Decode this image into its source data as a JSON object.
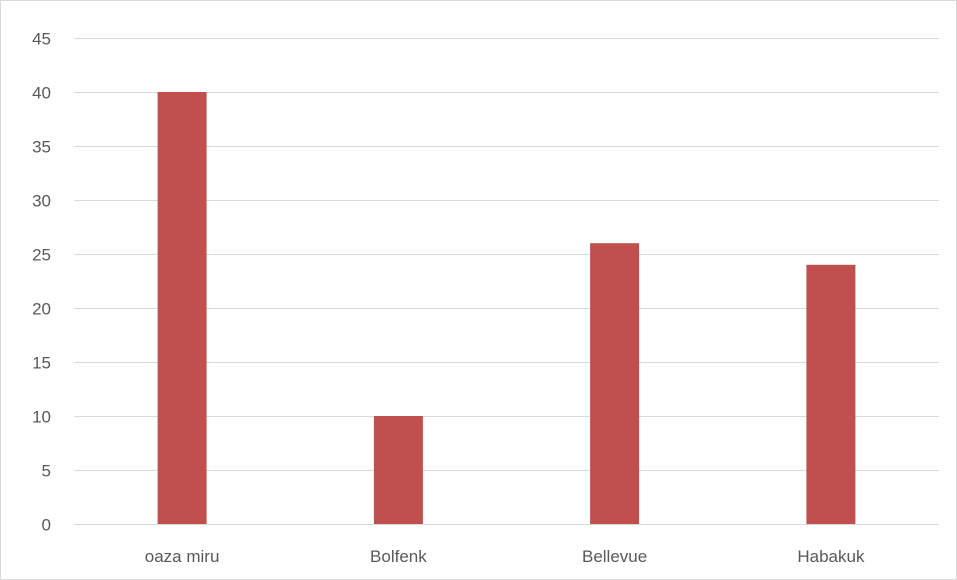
{
  "chart_data": {
    "type": "bar",
    "categories": [
      "oaza miru",
      "Bolfenk",
      "Bellevue",
      "Habakuk"
    ],
    "series": [
      {
        "values": [
          40,
          10,
          26,
          24
        ],
        "color": "#c0504d"
      }
    ],
    "title": "",
    "xlabel": "",
    "ylabel": "",
    "ylim": [
      0,
      45
    ],
    "yticks": [
      0,
      5,
      10,
      15,
      20,
      25,
      30,
      35,
      40,
      45
    ],
    "grid": true,
    "legend": "none"
  },
  "colors": {
    "bar": "#c0504d",
    "gridline": "#d9d9d9",
    "tick_text": "#595959"
  }
}
